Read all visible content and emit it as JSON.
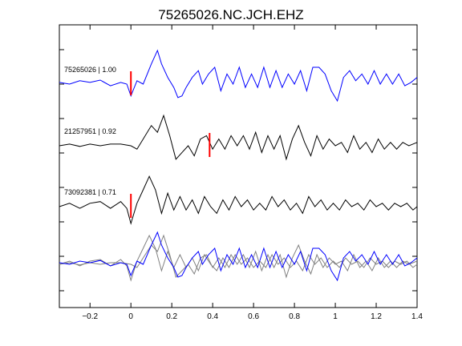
{
  "chart_data": {
    "type": "line",
    "title": "75265026.NC.JCH.EHZ",
    "xlabel": "",
    "ylabel": "",
    "xlim": [
      -0.35,
      1.4
    ],
    "xticks": [
      -0.2,
      0,
      0.2,
      0.4,
      0.6,
      0.8,
      1,
      1.2,
      1.4
    ],
    "xtick_labels": [
      "−0.2",
      "0",
      "0.2",
      "0.4",
      "0.6",
      "0.8",
      "1",
      "1.2",
      "1.4"
    ],
    "grid": false,
    "colors": {
      "primary": "#0000ff",
      "secondary": "#000000",
      "overlay": "#808080",
      "pick": "#ff0000"
    },
    "traces": [
      {
        "label": "75265026 | 1.00",
        "color": "#0000ff",
        "pick_time": 0.0,
        "points": [
          [
            -0.35,
            0.05
          ],
          [
            -0.3,
            0.0
          ],
          [
            -0.25,
            0.1
          ],
          [
            -0.2,
            0.05
          ],
          [
            -0.15,
            0.12
          ],
          [
            -0.1,
            -0.05
          ],
          [
            -0.05,
            0.05
          ],
          [
            -0.02,
            0.0
          ],
          [
            0.0,
            -0.35
          ],
          [
            0.03,
            0.1
          ],
          [
            0.06,
            0.0
          ],
          [
            0.1,
            0.6
          ],
          [
            0.13,
            1.0
          ],
          [
            0.15,
            0.6
          ],
          [
            0.18,
            0.2
          ],
          [
            0.21,
            -0.1
          ],
          [
            0.23,
            -0.4
          ],
          [
            0.25,
            -0.35
          ],
          [
            0.27,
            -0.1
          ],
          [
            0.3,
            0.2
          ],
          [
            0.33,
            0.4
          ],
          [
            0.35,
            0.0
          ],
          [
            0.38,
            0.3
          ],
          [
            0.41,
            0.5
          ],
          [
            0.44,
            -0.2
          ],
          [
            0.47,
            0.3
          ],
          [
            0.5,
            0.0
          ],
          [
            0.53,
            0.5
          ],
          [
            0.56,
            -0.1
          ],
          [
            0.59,
            0.3
          ],
          [
            0.62,
            -0.1
          ],
          [
            0.65,
            0.5
          ],
          [
            0.68,
            -0.1
          ],
          [
            0.71,
            0.4
          ],
          [
            0.74,
            -0.1
          ],
          [
            0.77,
            0.3
          ],
          [
            0.8,
            0.0
          ],
          [
            0.83,
            0.4
          ],
          [
            0.86,
            -0.2
          ],
          [
            0.89,
            0.5
          ],
          [
            0.92,
            0.5
          ],
          [
            0.95,
            0.3
          ],
          [
            0.98,
            -0.2
          ],
          [
            1.01,
            -0.5
          ],
          [
            1.04,
            0.2
          ],
          [
            1.07,
            0.4
          ],
          [
            1.1,
            0.1
          ],
          [
            1.13,
            0.3
          ],
          [
            1.16,
            0.0
          ],
          [
            1.19,
            0.4
          ],
          [
            1.22,
            0.0
          ],
          [
            1.25,
            0.3
          ],
          [
            1.28,
            0.0
          ],
          [
            1.31,
            0.3
          ],
          [
            1.34,
            -0.05
          ],
          [
            1.37,
            0.05
          ],
          [
            1.4,
            0.2
          ]
        ]
      },
      {
        "label": "21257951 | 0.92",
        "color": "#000000",
        "pick_time": 0.385,
        "points": [
          [
            -0.35,
            0.0
          ],
          [
            -0.3,
            0.05
          ],
          [
            -0.25,
            -0.02
          ],
          [
            -0.2,
            0.05
          ],
          [
            -0.15,
            0.0
          ],
          [
            -0.1,
            0.05
          ],
          [
            -0.05,
            0.05
          ],
          [
            0.0,
            0.0
          ],
          [
            0.03,
            -0.1
          ],
          [
            0.06,
            0.2
          ],
          [
            0.1,
            0.6
          ],
          [
            0.13,
            0.4
          ],
          [
            0.16,
            0.9
          ],
          [
            0.19,
            0.3
          ],
          [
            0.22,
            -0.4
          ],
          [
            0.25,
            -0.2
          ],
          [
            0.28,
            0.0
          ],
          [
            0.31,
            -0.3
          ],
          [
            0.34,
            0.2
          ],
          [
            0.37,
            0.3
          ],
          [
            0.4,
            -0.1
          ],
          [
            0.43,
            0.2
          ],
          [
            0.46,
            -0.1
          ],
          [
            0.49,
            0.3
          ],
          [
            0.52,
            0.0
          ],
          [
            0.55,
            0.3
          ],
          [
            0.58,
            -0.1
          ],
          [
            0.61,
            0.4
          ],
          [
            0.64,
            -0.2
          ],
          [
            0.67,
            0.3
          ],
          [
            0.7,
            -0.1
          ],
          [
            0.73,
            0.3
          ],
          [
            0.76,
            -0.4
          ],
          [
            0.79,
            0.2
          ],
          [
            0.82,
            0.6
          ],
          [
            0.85,
            0.1
          ],
          [
            0.88,
            -0.3
          ],
          [
            0.91,
            0.3
          ],
          [
            0.94,
            -0.1
          ],
          [
            0.97,
            0.2
          ],
          [
            1.0,
            0.0
          ],
          [
            1.03,
            0.1
          ],
          [
            1.06,
            -0.2
          ],
          [
            1.09,
            0.3
          ],
          [
            1.12,
            -0.1
          ],
          [
            1.15,
            0.1
          ],
          [
            1.18,
            -0.2
          ],
          [
            1.21,
            0.2
          ],
          [
            1.24,
            -0.1
          ],
          [
            1.27,
            0.1
          ],
          [
            1.3,
            -0.1
          ],
          [
            1.33,
            0.1
          ],
          [
            1.36,
            0.0
          ],
          [
            1.4,
            0.1
          ]
        ]
      },
      {
        "label": "73092381 | 0.71",
        "color": "#000000",
        "pick_time": 0.0,
        "points": [
          [
            -0.35,
            0.0
          ],
          [
            -0.3,
            0.1
          ],
          [
            -0.25,
            -0.05
          ],
          [
            -0.2,
            0.1
          ],
          [
            -0.15,
            0.15
          ],
          [
            -0.1,
            -0.05
          ],
          [
            -0.05,
            0.15
          ],
          [
            -0.02,
            -0.05
          ],
          [
            0.0,
            -0.5
          ],
          [
            0.03,
            0.1
          ],
          [
            0.06,
            0.5
          ],
          [
            0.09,
            0.9
          ],
          [
            0.12,
            0.5
          ],
          [
            0.15,
            -0.2
          ],
          [
            0.18,
            0.4
          ],
          [
            0.21,
            -0.1
          ],
          [
            0.24,
            0.3
          ],
          [
            0.27,
            -0.1
          ],
          [
            0.3,
            0.2
          ],
          [
            0.33,
            -0.2
          ],
          [
            0.36,
            0.3
          ],
          [
            0.39,
            0.0
          ],
          [
            0.42,
            -0.2
          ],
          [
            0.45,
            0.2
          ],
          [
            0.48,
            -0.1
          ],
          [
            0.51,
            0.3
          ],
          [
            0.54,
            0.0
          ],
          [
            0.57,
            0.2
          ],
          [
            0.6,
            -0.1
          ],
          [
            0.63,
            0.1
          ],
          [
            0.66,
            -0.1
          ],
          [
            0.69,
            0.3
          ],
          [
            0.72,
            0.0
          ],
          [
            0.75,
            0.2
          ],
          [
            0.78,
            -0.1
          ],
          [
            0.81,
            0.1
          ],
          [
            0.84,
            -0.2
          ],
          [
            0.87,
            0.3
          ],
          [
            0.9,
            0.0
          ],
          [
            0.93,
            0.2
          ],
          [
            0.96,
            -0.1
          ],
          [
            0.99,
            0.1
          ],
          [
            1.02,
            -0.1
          ],
          [
            1.05,
            0.2
          ],
          [
            1.08,
            0.0
          ],
          [
            1.11,
            0.1
          ],
          [
            1.14,
            -0.1
          ],
          [
            1.17,
            0.2
          ],
          [
            1.2,
            0.0
          ],
          [
            1.23,
            0.1
          ],
          [
            1.26,
            -0.1
          ],
          [
            1.29,
            0.1
          ],
          [
            1.32,
            0.0
          ],
          [
            1.35,
            0.1
          ],
          [
            1.38,
            -0.1
          ],
          [
            1.4,
            0.0
          ]
        ]
      }
    ]
  }
}
